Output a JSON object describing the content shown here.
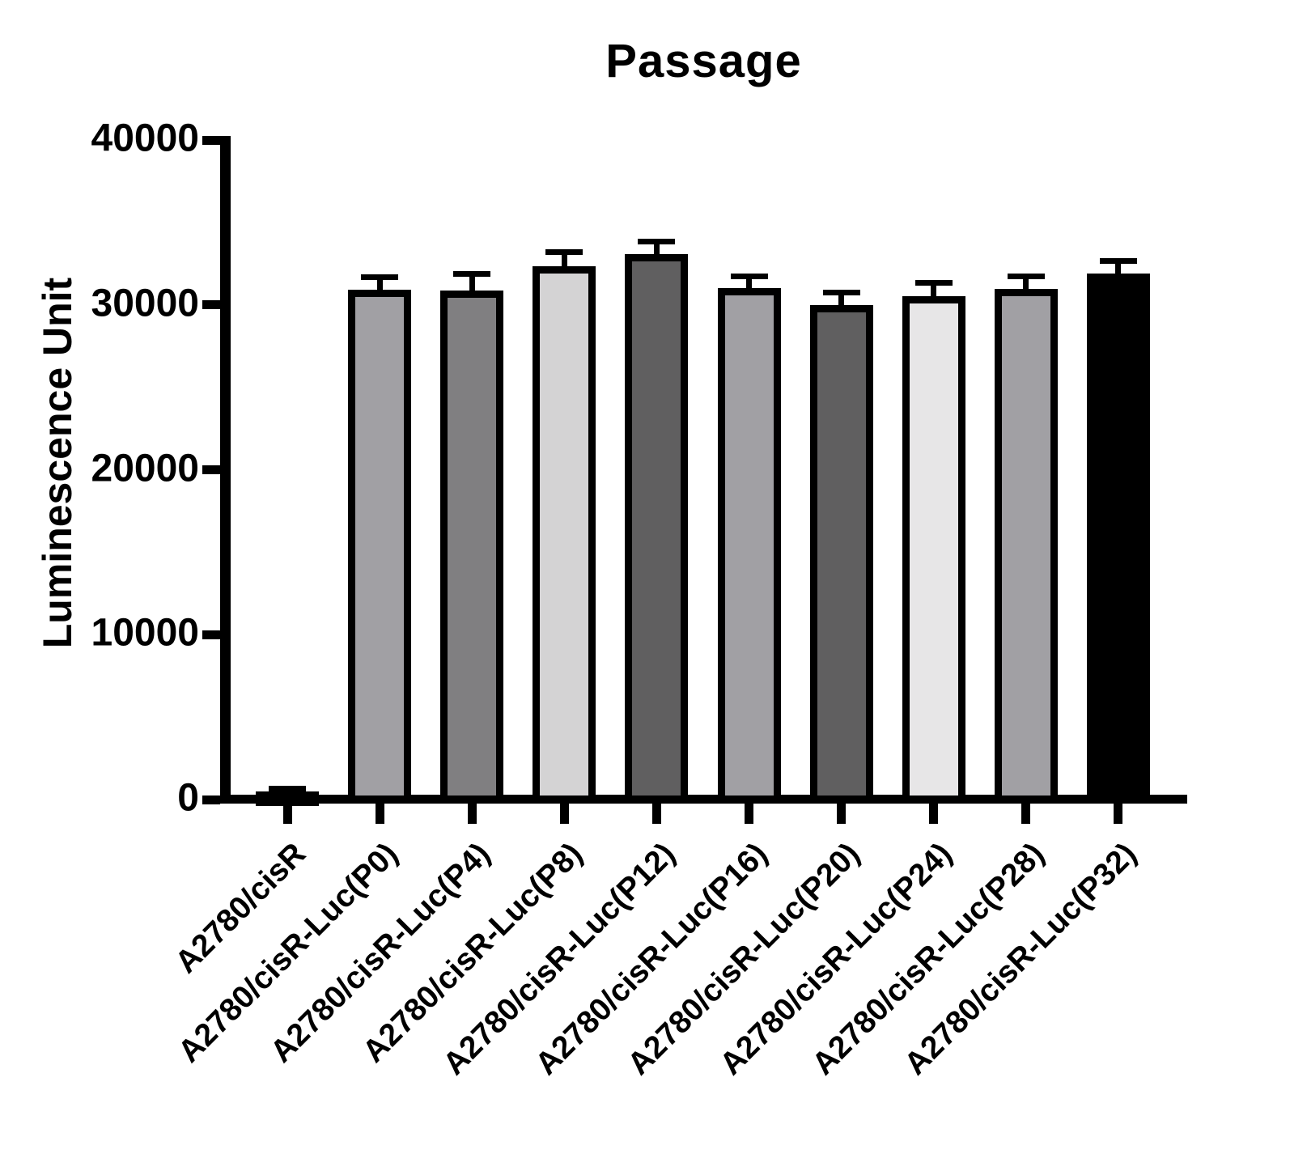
{
  "chart_data": {
    "type": "bar",
    "title": "Passage",
    "xlabel": "",
    "ylabel": "Luminescence Unit",
    "ylim": [
      0,
      40000
    ],
    "yticks": [
      0,
      10000,
      20000,
      30000,
      40000
    ],
    "grid": false,
    "legend": null,
    "categories": [
      "A2780/cisR",
      "A2780/cisR-Luc(P0)",
      "A2780/cisR-Luc(P4)",
      "A2780/cisR-Luc(P8)",
      "A2780/cisR-Luc(P12)",
      "A2780/cisR-Luc(P16)",
      "A2780/cisR-Luc(P20)",
      "A2780/cisR-Luc(P24)",
      "A2780/cisR-Luc(P28)",
      "A2780/cisR-Luc(P32)"
    ],
    "values": [
      500,
      30900,
      30850,
      32350,
      33100,
      31000,
      30000,
      30550,
      30950,
      31900
    ],
    "errors_plus": [
      140,
      800,
      1050,
      850,
      750,
      750,
      750,
      800,
      780,
      780
    ],
    "bar_colors": [
      "#a1a0a4",
      "#a1a0a4",
      "#807f81",
      "#d4d3d4",
      "#605f60",
      "#a1a0a4",
      "#605f60",
      "#e7e6e7",
      "#a1a0a4",
      "#000000"
    ],
    "bar_border_color": "#000000",
    "error_bar_color": "#000000",
    "axis_color": "#000000",
    "background_color": "#ffffff"
  }
}
